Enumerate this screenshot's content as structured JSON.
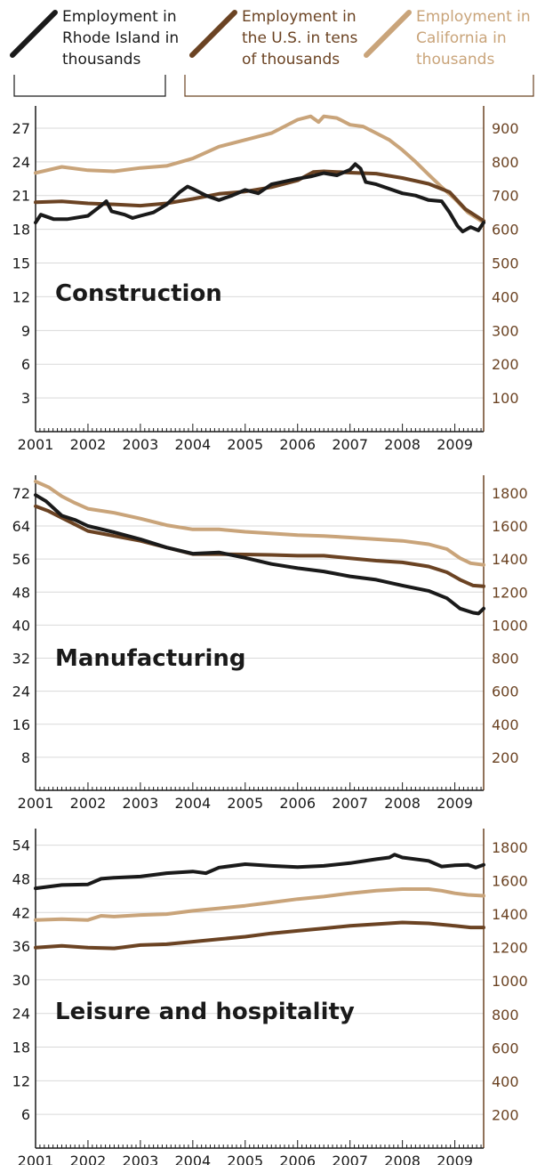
{
  "legend": [
    {
      "lines": [
        "Employment in",
        "Rhode Island in",
        "thousands"
      ],
      "color": "#1a1a1a"
    },
    {
      "lines": [
        "Employment in",
        "the U.S. in tens",
        "of thousands"
      ],
      "color": "#6b4323"
    },
    {
      "lines": [
        "Employment in",
        "California in",
        "thousands"
      ],
      "color": "#c9a47a"
    }
  ],
  "colors": {
    "ri": "#1a1a1a",
    "us": "#6b4323",
    "ca": "#c9a47a",
    "right_axis_text": "#6b4323",
    "grid": "#d9d9d9"
  },
  "chart_data": [
    {
      "type": "line",
      "title": "Construction",
      "x_ticks": [
        "2001",
        "2002",
        "2003",
        "2004",
        "2005",
        "2006",
        "2007",
        "2008",
        "2009"
      ],
      "xlim": [
        2001,
        2009.55
      ],
      "left_axis": {
        "ticks": [
          "3",
          "6",
          "9",
          "12",
          "15",
          "18",
          "21",
          "24",
          "27"
        ],
        "min": 0,
        "max": 28.5
      },
      "right_axis": {
        "ticks": [
          "100",
          "200",
          "300",
          "400",
          "500",
          "600",
          "700",
          "800",
          "900"
        ],
        "min": 0,
        "max": 950
      },
      "grid": true,
      "series": [
        {
          "key": "ca",
          "axis": "right",
          "points": [
            [
              2001.0,
              767
            ],
            [
              2001.5,
              785
            ],
            [
              2002.0,
              775
            ],
            [
              2002.5,
              772
            ],
            [
              2003.0,
              782
            ],
            [
              2003.5,
              788
            ],
            [
              2004.0,
              810
            ],
            [
              2004.5,
              845
            ],
            [
              2005.0,
              865
            ],
            [
              2005.5,
              885
            ],
            [
              2006.0,
              925
            ],
            [
              2006.25,
              935
            ],
            [
              2006.4,
              918
            ],
            [
              2006.5,
              935
            ],
            [
              2006.75,
              930
            ],
            [
              2007.0,
              910
            ],
            [
              2007.25,
              905
            ],
            [
              2007.5,
              885
            ],
            [
              2007.75,
              865
            ],
            [
              2008.0,
              835
            ],
            [
              2008.25,
              800
            ],
            [
              2008.5,
              762
            ],
            [
              2008.75,
              725
            ],
            [
              2009.0,
              690
            ],
            [
              2009.25,
              650
            ],
            [
              2009.55,
              620
            ]
          ]
        },
        {
          "key": "us",
          "axis": "right",
          "points": [
            [
              2001.0,
              680
            ],
            [
              2001.5,
              683
            ],
            [
              2002.0,
              677
            ],
            [
              2002.5,
              674
            ],
            [
              2003.0,
              670
            ],
            [
              2003.5,
              677
            ],
            [
              2004.0,
              690
            ],
            [
              2004.5,
              705
            ],
            [
              2005.0,
              712
            ],
            [
              2005.5,
              725
            ],
            [
              2006.0,
              745
            ],
            [
              2006.3,
              770
            ],
            [
              2006.5,
              772
            ],
            [
              2006.75,
              770
            ],
            [
              2007.0,
              768
            ],
            [
              2007.5,
              765
            ],
            [
              2008.0,
              752
            ],
            [
              2008.5,
              735
            ],
            [
              2008.9,
              710
            ],
            [
              2009.2,
              660
            ],
            [
              2009.55,
              625
            ]
          ]
        },
        {
          "key": "ri",
          "axis": "left",
          "points": [
            [
              2001.0,
              18.6
            ],
            [
              2001.1,
              19.3
            ],
            [
              2001.35,
              18.9
            ],
            [
              2001.6,
              18.9
            ],
            [
              2002.0,
              19.2
            ],
            [
              2002.25,
              20.1
            ],
            [
              2002.35,
              20.5
            ],
            [
              2002.45,
              19.6
            ],
            [
              2002.7,
              19.3
            ],
            [
              2002.85,
              19.0
            ],
            [
              2003.0,
              19.2
            ],
            [
              2003.25,
              19.5
            ],
            [
              2003.5,
              20.2
            ],
            [
              2003.75,
              21.3
            ],
            [
              2003.9,
              21.8
            ],
            [
              2004.0,
              21.6
            ],
            [
              2004.25,
              21.0
            ],
            [
              2004.5,
              20.6
            ],
            [
              2004.75,
              21.0
            ],
            [
              2005.0,
              21.5
            ],
            [
              2005.25,
              21.2
            ],
            [
              2005.5,
              22.0
            ],
            [
              2006.0,
              22.5
            ],
            [
              2006.25,
              22.7
            ],
            [
              2006.5,
              23.0
            ],
            [
              2006.75,
              22.8
            ],
            [
              2007.0,
              23.3
            ],
            [
              2007.1,
              23.8
            ],
            [
              2007.2,
              23.4
            ],
            [
              2007.3,
              22.2
            ],
            [
              2007.5,
              22.0
            ],
            [
              2008.0,
              21.2
            ],
            [
              2008.25,
              21.0
            ],
            [
              2008.5,
              20.6
            ],
            [
              2008.75,
              20.5
            ],
            [
              2008.9,
              19.5
            ],
            [
              2009.05,
              18.3
            ],
            [
              2009.15,
              17.8
            ],
            [
              2009.3,
              18.2
            ],
            [
              2009.45,
              17.9
            ],
            [
              2009.55,
              18.6
            ]
          ]
        }
      ]
    },
    {
      "type": "line",
      "title": "Manufacturing",
      "x_ticks": [
        "2001",
        "2002",
        "2003",
        "2004",
        "2005",
        "2006",
        "2007",
        "2008",
        "2009"
      ],
      "xlim": [
        2001,
        2009.55
      ],
      "left_axis": {
        "ticks": [
          "8",
          "16",
          "24",
          "32",
          "40",
          "48",
          "56",
          "64",
          "72"
        ],
        "min": 0,
        "max": 75
      },
      "right_axis": {
        "ticks": [
          "200",
          "400",
          "600",
          "800",
          "1000",
          "1200",
          "1400",
          "1600",
          "1800"
        ],
        "min": 0,
        "max": 1875
      },
      "grid": true,
      "series": [
        {
          "key": "ca",
          "axis": "right",
          "points": [
            [
              2001.0,
              1870
            ],
            [
              2001.25,
              1835
            ],
            [
              2001.5,
              1780
            ],
            [
              2001.75,
              1740
            ],
            [
              2002.0,
              1705
            ],
            [
              2002.5,
              1680
            ],
            [
              2003.0,
              1645
            ],
            [
              2003.5,
              1605
            ],
            [
              2004.0,
              1580
            ],
            [
              2004.5,
              1580
            ],
            [
              2005.0,
              1565
            ],
            [
              2005.5,
              1555
            ],
            [
              2006.0,
              1545
            ],
            [
              2006.5,
              1540
            ],
            [
              2007.0,
              1530
            ],
            [
              2007.5,
              1520
            ],
            [
              2008.0,
              1510
            ],
            [
              2008.5,
              1490
            ],
            [
              2008.85,
              1460
            ],
            [
              2009.1,
              1405
            ],
            [
              2009.3,
              1375
            ],
            [
              2009.55,
              1365
            ]
          ]
        },
        {
          "key": "us",
          "axis": "right",
          "points": [
            [
              2001.0,
              1720
            ],
            [
              2001.25,
              1690
            ],
            [
              2001.5,
              1650
            ],
            [
              2001.75,
              1610
            ],
            [
              2002.0,
              1570
            ],
            [
              2002.5,
              1540
            ],
            [
              2003.0,
              1510
            ],
            [
              2003.5,
              1470
            ],
            [
              2004.0,
              1430
            ],
            [
              2004.5,
              1430
            ],
            [
              2005.0,
              1428
            ],
            [
              2005.5,
              1425
            ],
            [
              2006.0,
              1420
            ],
            [
              2006.5,
              1420
            ],
            [
              2007.0,
              1405
            ],
            [
              2007.5,
              1390
            ],
            [
              2008.0,
              1380
            ],
            [
              2008.5,
              1355
            ],
            [
              2008.85,
              1320
            ],
            [
              2009.1,
              1275
            ],
            [
              2009.35,
              1240
            ],
            [
              2009.55,
              1235
            ]
          ]
        },
        {
          "key": "ri",
          "axis": "left",
          "points": [
            [
              2001.0,
              71.5
            ],
            [
              2001.2,
              70.0
            ],
            [
              2001.5,
              66.5
            ],
            [
              2001.75,
              65.5
            ],
            [
              2002.0,
              64.0
            ],
            [
              2002.5,
              62.5
            ],
            [
              2003.0,
              60.8
            ],
            [
              2003.5,
              58.8
            ],
            [
              2004.0,
              57.3
            ],
            [
              2004.5,
              57.6
            ],
            [
              2005.0,
              56.3
            ],
            [
              2005.5,
              54.8
            ],
            [
              2006.0,
              53.8
            ],
            [
              2006.5,
              53.0
            ],
            [
              2007.0,
              51.8
            ],
            [
              2007.5,
              51.0
            ],
            [
              2008.0,
              49.6
            ],
            [
              2008.5,
              48.3
            ],
            [
              2008.85,
              46.5
            ],
            [
              2009.1,
              44.0
            ],
            [
              2009.35,
              43.0
            ],
            [
              2009.45,
              42.8
            ],
            [
              2009.55,
              44.0
            ]
          ]
        }
      ]
    },
    {
      "type": "line",
      "title": "Leisure and hospitality",
      "x_ticks": [
        "2001",
        "2002",
        "2003",
        "2004",
        "2005",
        "2006",
        "2007",
        "2008",
        "2009"
      ],
      "xlim": [
        2001,
        2009.55
      ],
      "left_axis": {
        "ticks": [
          "6",
          "12",
          "18",
          "24",
          "30",
          "36",
          "42",
          "48",
          "54"
        ],
        "min": 0,
        "max": 56
      },
      "right_axis": {
        "ticks": [
          "200",
          "400",
          "600",
          "800",
          "1000",
          "1200",
          "1400",
          "1600",
          "1800"
        ],
        "min": 0,
        "max": 1880
      },
      "grid": true,
      "series": [
        {
          "key": "ri",
          "axis": "left",
          "points": [
            [
              2001.0,
              46.3
            ],
            [
              2001.5,
              46.9
            ],
            [
              2002.0,
              47.0
            ],
            [
              2002.25,
              48.0
            ],
            [
              2002.5,
              48.2
            ],
            [
              2003.0,
              48.4
            ],
            [
              2003.5,
              49.0
            ],
            [
              2004.0,
              49.3
            ],
            [
              2004.25,
              49.0
            ],
            [
              2004.5,
              50.0
            ],
            [
              2005.0,
              50.6
            ],
            [
              2005.5,
              50.3
            ],
            [
              2006.0,
              50.1
            ],
            [
              2006.5,
              50.3
            ],
            [
              2007.0,
              50.8
            ],
            [
              2007.5,
              51.5
            ],
            [
              2007.75,
              51.8
            ],
            [
              2007.85,
              52.3
            ],
            [
              2008.0,
              51.8
            ],
            [
              2008.5,
              51.2
            ],
            [
              2008.75,
              50.2
            ],
            [
              2009.0,
              50.4
            ],
            [
              2009.25,
              50.5
            ],
            [
              2009.4,
              50.0
            ],
            [
              2009.55,
              50.5
            ]
          ]
        },
        {
          "key": "ca",
          "axis": "right",
          "points": [
            [
              2001.0,
              1365
            ],
            [
              2001.5,
              1370
            ],
            [
              2002.0,
              1365
            ],
            [
              2002.25,
              1390
            ],
            [
              2002.5,
              1385
            ],
            [
              2003.0,
              1395
            ],
            [
              2003.5,
              1400
            ],
            [
              2004.0,
              1420
            ],
            [
              2004.5,
              1435
            ],
            [
              2005.0,
              1450
            ],
            [
              2005.5,
              1470
            ],
            [
              2006.0,
              1490
            ],
            [
              2006.5,
              1505
            ],
            [
              2007.0,
              1525
            ],
            [
              2007.5,
              1540
            ],
            [
              2008.0,
              1550
            ],
            [
              2008.5,
              1550
            ],
            [
              2008.75,
              1540
            ],
            [
              2009.0,
              1525
            ],
            [
              2009.25,
              1515
            ],
            [
              2009.55,
              1510
            ]
          ]
        },
        {
          "key": "us",
          "axis": "right",
          "points": [
            [
              2001.0,
              1200
            ],
            [
              2001.5,
              1210
            ],
            [
              2002.0,
              1200
            ],
            [
              2002.5,
              1195
            ],
            [
              2003.0,
              1215
            ],
            [
              2003.5,
              1220
            ],
            [
              2004.0,
              1235
            ],
            [
              2004.5,
              1250
            ],
            [
              2005.0,
              1265
            ],
            [
              2005.5,
              1285
            ],
            [
              2006.0,
              1300
            ],
            [
              2006.5,
              1315
            ],
            [
              2007.0,
              1330
            ],
            [
              2007.5,
              1340
            ],
            [
              2008.0,
              1350
            ],
            [
              2008.5,
              1345
            ],
            [
              2009.0,
              1330
            ],
            [
              2009.3,
              1320
            ],
            [
              2009.55,
              1320
            ]
          ]
        }
      ]
    }
  ]
}
